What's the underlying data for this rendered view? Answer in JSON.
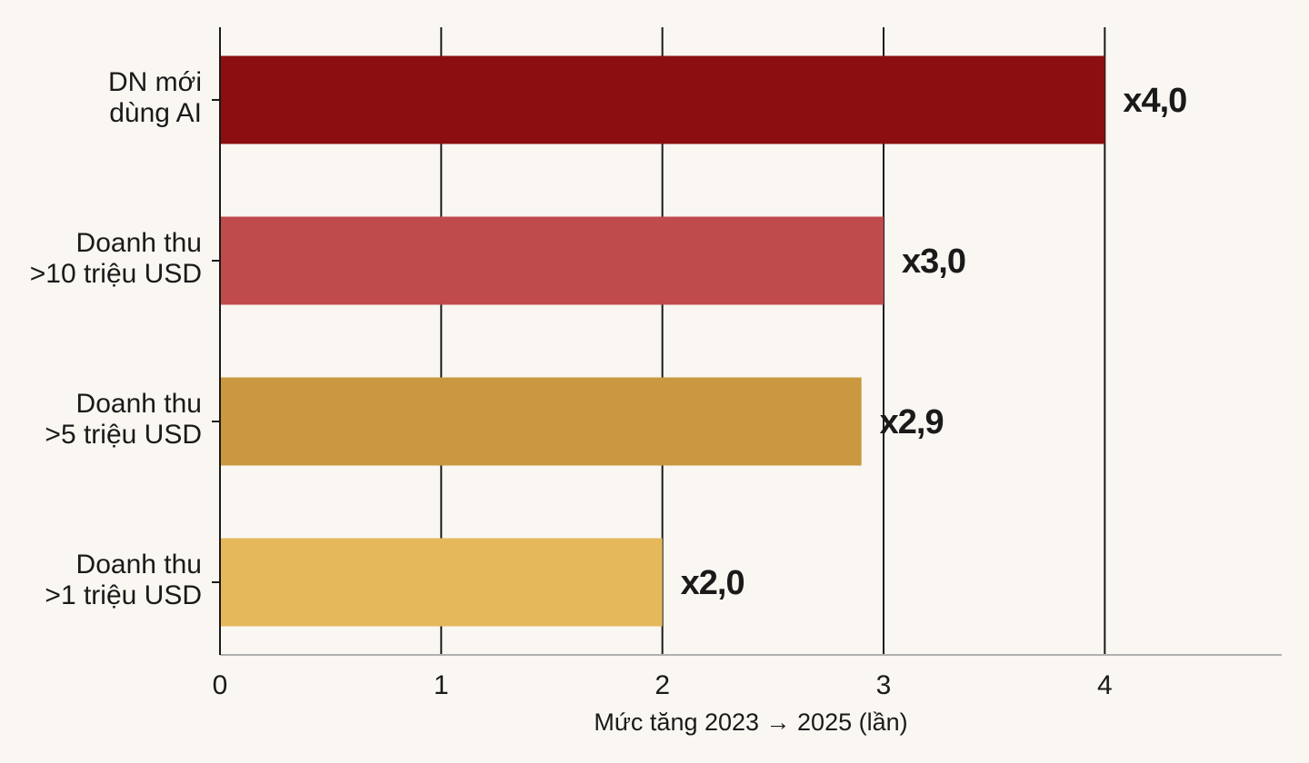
{
  "chart_data": {
    "type": "bar",
    "orientation": "horizontal",
    "categories": [
      [
        "DN mới",
        "dùng AI"
      ],
      [
        "Doanh thu",
        ">10 triệu USD"
      ],
      [
        "Doanh thu",
        ">5 triệu USD"
      ],
      [
        "Doanh thu",
        ">1 triệu USD"
      ]
    ],
    "values": [
      4.0,
      3.0,
      2.9,
      2.0
    ],
    "value_labels": [
      "x4,0",
      "x3,0",
      "x2,9",
      "x2,0"
    ],
    "colors": [
      "#8b0f10",
      "#c04b4d",
      "#c9983f",
      "#e5b85c"
    ],
    "xlabel": "Mức tăng 2023 → 2025 (lần)",
    "xlim": [
      0,
      4.8
    ],
    "xticks": [
      0,
      1,
      2,
      3,
      4
    ],
    "xtick_labels": [
      "0",
      "1",
      "2",
      "3",
      "4"
    ],
    "grid": "vertical"
  }
}
